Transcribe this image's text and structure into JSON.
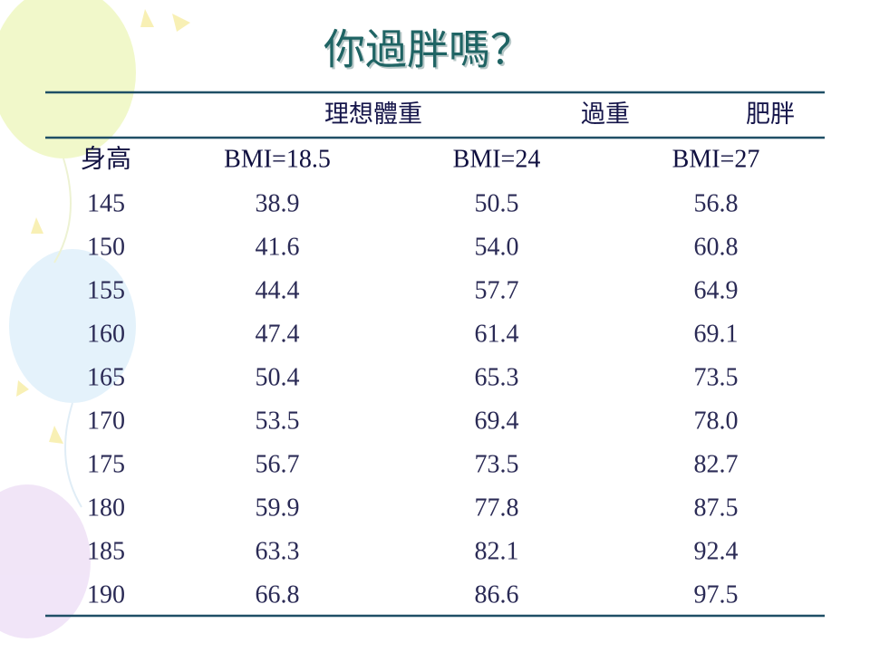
{
  "header": {
    "title": "你過胖嗎？"
  },
  "table": {
    "group_headers": [
      "理想體重",
      "過重",
      "肥胖"
    ],
    "columns": [
      "身高",
      "BMI=18.5",
      "BMI=24",
      "BMI=27"
    ],
    "rows": [
      [
        "145",
        "38.9",
        "50.5",
        "56.8"
      ],
      [
        "150",
        "41.6",
        "54.0",
        "60.8"
      ],
      [
        "155",
        "44.4",
        "57.7",
        "64.9"
      ],
      [
        "160",
        "47.4",
        "61.4",
        "69.1"
      ],
      [
        "165",
        "50.4",
        "65.3",
        "73.5"
      ],
      [
        "170",
        "53.5",
        "69.4",
        "78.0"
      ],
      [
        "175",
        "56.7",
        "73.5",
        "82.7"
      ],
      [
        "180",
        "59.9",
        "77.8",
        "87.5"
      ],
      [
        "185",
        "63.3",
        "82.1",
        "92.4"
      ],
      [
        "190",
        "66.8",
        "86.6",
        "97.5"
      ]
    ]
  }
}
